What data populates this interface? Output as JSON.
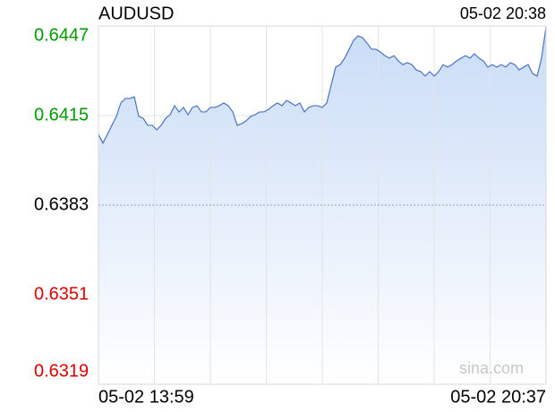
{
  "chart_data": {
    "type": "area",
    "title": "AUDUSD",
    "timestamp": "05-02 20:38",
    "watermark": "sina.com",
    "categories": [
      "05-02 13:59",
      null,
      null,
      null,
      null,
      null,
      null,
      null,
      null,
      null,
      null,
      null,
      null,
      null,
      null,
      null,
      null,
      null,
      null,
      null,
      null,
      null,
      null,
      null,
      null,
      null,
      null,
      null,
      null,
      null,
      null,
      null,
      null,
      null,
      null,
      null,
      null,
      null,
      null,
      null,
      null,
      null,
      null,
      null,
      null,
      null,
      null,
      null,
      null,
      null,
      null,
      null,
      null,
      null,
      null,
      null,
      null,
      null,
      null,
      null,
      null,
      null,
      null,
      null,
      null,
      null,
      null,
      null,
      null,
      null,
      null,
      null,
      null,
      null,
      null,
      null,
      null,
      null,
      null,
      null,
      null,
      null,
      null,
      null,
      null,
      null,
      null,
      null,
      null,
      null,
      null,
      null,
      null,
      null,
      null,
      null,
      null,
      null,
      null,
      null,
      "05-02 20:37"
    ],
    "values": [
      0.64083,
      0.64051,
      0.64083,
      0.64115,
      0.64147,
      0.64195,
      0.64211,
      0.64211,
      0.64217,
      0.64147,
      0.6414,
      0.64115,
      0.64115,
      0.64099,
      0.64115,
      0.6414,
      0.64153,
      0.64185,
      0.64163,
      0.64179,
      0.64153,
      0.64179,
      0.64185,
      0.64163,
      0.64163,
      0.64179,
      0.64179,
      0.64185,
      0.64195,
      0.64185,
      0.64163,
      0.64115,
      0.64121,
      0.64131,
      0.64147,
      0.64153,
      0.64163,
      0.64163,
      0.64172,
      0.64185,
      0.64195,
      0.64185,
      0.64204,
      0.64195,
      0.64185,
      0.64195,
      0.64163,
      0.64179,
      0.64185,
      0.64185,
      0.64179,
      0.64195,
      0.64259,
      0.64323,
      0.64332,
      0.64355,
      0.64387,
      0.64419,
      0.64435,
      0.64428,
      0.64409,
      0.64387,
      0.64387,
      0.64377,
      0.64364,
      0.64355,
      0.64364,
      0.64345,
      0.64332,
      0.64339,
      0.64332,
      0.64313,
      0.64307,
      0.64291,
      0.64307,
      0.64291,
      0.64307,
      0.64332,
      0.64323,
      0.64332,
      0.64345,
      0.64355,
      0.64364,
      0.64355,
      0.64371,
      0.64355,
      0.64345,
      0.64323,
      0.64332,
      0.64323,
      0.64332,
      0.64323,
      0.64339,
      0.64332,
      0.64313,
      0.64323,
      0.64332,
      0.643,
      0.64291,
      0.64355,
      0.64467
    ],
    "color": "#4a74c9",
    "ylim": [
      0.6319,
      0.6447
    ],
    "yticks": [
      0.6319,
      0.6351,
      0.6383,
      0.6415,
      0.6447
    ],
    "baseline": 0.6383,
    "up_color": "#009900",
    "flat_color": "#000000",
    "down_color": "#dd0000",
    "grid": true
  }
}
